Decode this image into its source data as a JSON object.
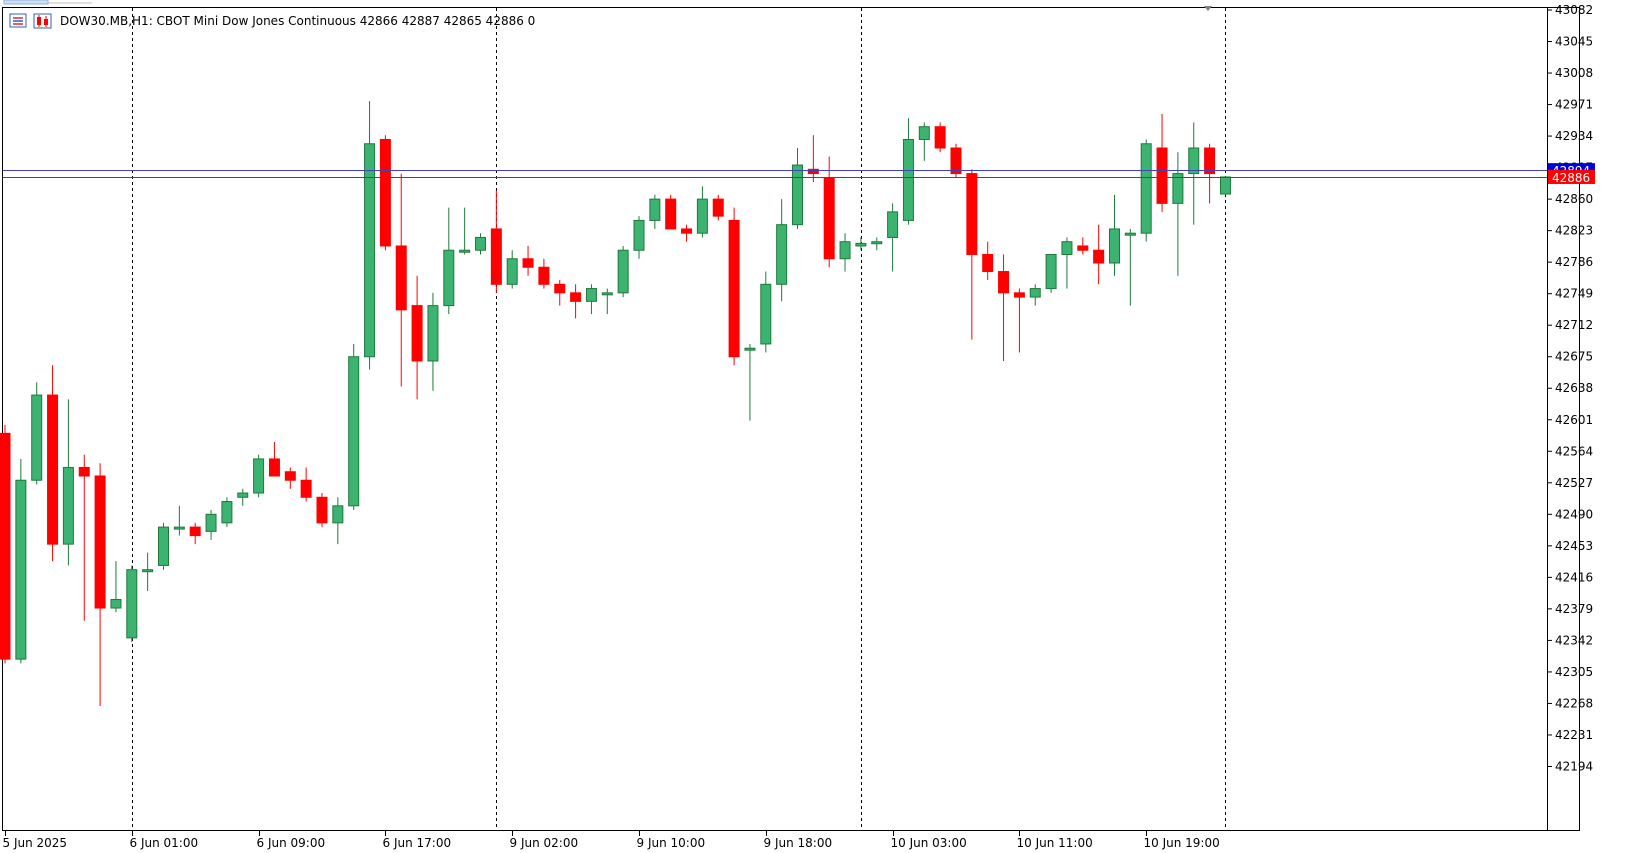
{
  "header": {
    "symbol_text": "DOW30.MB,H1:  CBOT Mini Dow Jones Continuous  42866 42887 42865 42886  0"
  },
  "colors": {
    "bull": "#3cb371",
    "bull_border": "#1e7a3c",
    "bear": "#ff0000",
    "bear_border": "#b00000",
    "bid_line": "#ff0000",
    "ask_line": "#4040c0",
    "grid": "#000000",
    "axis": "#000000"
  },
  "chart_data": {
    "type": "candlestick",
    "timeframe": "H1",
    "ylim": [
      42157,
      43082
    ],
    "yticks": [
      43082,
      43045,
      43008,
      42971,
      42934,
      42897,
      42860,
      42823,
      42786,
      42749,
      42712,
      42675,
      42638,
      42601,
      42564,
      42527,
      42490,
      42453,
      42416,
      42379,
      42342,
      42305,
      42268,
      42231,
      42194
    ],
    "xticks": [
      {
        "label": "5 Jun 2025",
        "bar": 0
      },
      {
        "label": "6 Jun 01:00",
        "bar": 8
      },
      {
        "label": "6 Jun 09:00",
        "bar": 16
      },
      {
        "label": "6 Jun 17:00",
        "bar": 24
      },
      {
        "label": "9 Jun 02:00",
        "bar": 32
      },
      {
        "label": "9 Jun 10:00",
        "bar": 40
      },
      {
        "label": "9 Jun 18:00",
        "bar": 48
      },
      {
        "label": "10 Jun 03:00",
        "bar": 56
      },
      {
        "label": "10 Jun 11:00",
        "bar": 64
      },
      {
        "label": "10 Jun 19:00",
        "bar": 72
      }
    ],
    "session_separators": [
      8,
      31,
      54,
      77
    ],
    "bid": 42886,
    "ask": 42894,
    "bid_label": "42886",
    "ask_label": "42894",
    "candles": [
      [
        42585,
        42595,
        42315,
        42320
      ],
      [
        42320,
        42555,
        42315,
        42530
      ],
      [
        42530,
        42645,
        42525,
        42630
      ],
      [
        42630,
        42665,
        42435,
        42455
      ],
      [
        42455,
        42625,
        42430,
        42545
      ],
      [
        42545,
        42560,
        42365,
        42535
      ],
      [
        42535,
        42550,
        42265,
        42380
      ],
      [
        42380,
        42435,
        42375,
        42390
      ],
      [
        42345,
        42430,
        42340,
        42425
      ],
      [
        42425,
        42445,
        42400,
        42425
      ],
      [
        42430,
        42480,
        42425,
        42475
      ],
      [
        42475,
        42500,
        42465,
        42475
      ],
      [
        42475,
        42480,
        42455,
        42465
      ],
      [
        42470,
        42495,
        42460,
        42490
      ],
      [
        42480,
        42510,
        42475,
        42505
      ],
      [
        42510,
        42520,
        42500,
        42515
      ],
      [
        42515,
        42560,
        42510,
        42555
      ],
      [
        42555,
        42575,
        42535,
        42535
      ],
      [
        42540,
        42545,
        42520,
        42530
      ],
      [
        42530,
        42545,
        42505,
        42510
      ],
      [
        42510,
        42515,
        42475,
        42480
      ],
      [
        42480,
        42510,
        42455,
        42500
      ],
      [
        42500,
        42690,
        42495,
        42675
      ],
      [
        42675,
        42975,
        42660,
        42925
      ],
      [
        42930,
        42935,
        42800,
        42805
      ],
      [
        42805,
        42890,
        42640,
        42730
      ],
      [
        42735,
        42770,
        42625,
        42670
      ],
      [
        42670,
        42750,
        42635,
        42735
      ],
      [
        42735,
        42850,
        42725,
        42800
      ],
      [
        42800,
        42850,
        42795,
        42800
      ],
      [
        42800,
        42820,
        42795,
        42815
      ],
      [
        42825,
        42870,
        42750,
        42760
      ],
      [
        42760,
        42800,
        42755,
        42790
      ],
      [
        42790,
        42805,
        42770,
        42780
      ],
      [
        42780,
        42790,
        42755,
        42760
      ],
      [
        42760,
        42765,
        42735,
        42750
      ],
      [
        42750,
        42760,
        42720,
        42740
      ],
      [
        42740,
        42760,
        42725,
        42755
      ],
      [
        42750,
        42755,
        42725,
        42750
      ],
      [
        42750,
        42805,
        42745,
        42800
      ],
      [
        42800,
        42840,
        42790,
        42835
      ],
      [
        42835,
        42865,
        42825,
        42860
      ],
      [
        42860,
        42865,
        42825,
        42825
      ],
      [
        42825,
        42830,
        42810,
        42820
      ],
      [
        42820,
        42875,
        42815,
        42860
      ],
      [
        42860,
        42865,
        42835,
        42840
      ],
      [
        42835,
        42850,
        42665,
        42675
      ],
      [
        42685,
        42690,
        42600,
        42685
      ],
      [
        42690,
        42775,
        42680,
        42760
      ],
      [
        42760,
        42860,
        42740,
        42830
      ],
      [
        42830,
        42920,
        42825,
        42900
      ],
      [
        42895,
        42935,
        42880,
        42890
      ],
      [
        42885,
        42910,
        42780,
        42790
      ],
      [
        42790,
        42820,
        42775,
        42810
      ],
      [
        42805,
        42815,
        42800,
        42808
      ],
      [
        42808,
        42815,
        42800,
        42810
      ],
      [
        42815,
        42855,
        42775,
        42845
      ],
      [
        42835,
        42955,
        42830,
        42930
      ],
      [
        42930,
        42950,
        42905,
        42945
      ],
      [
        42945,
        42950,
        42915,
        42920
      ],
      [
        42920,
        42925,
        42885,
        42890
      ],
      [
        42890,
        42895,
        42695,
        42795
      ],
      [
        42795,
        42810,
        42765,
        42775
      ],
      [
        42775,
        42795,
        42670,
        42750
      ],
      [
        42750,
        42755,
        42680,
        42745
      ],
      [
        42745,
        42760,
        42735,
        42755
      ],
      [
        42755,
        42795,
        42750,
        42795
      ],
      [
        42795,
        42815,
        42755,
        42810
      ],
      [
        42805,
        42815,
        42795,
        42800
      ],
      [
        42800,
        42830,
        42760,
        42785
      ],
      [
        42785,
        42865,
        42770,
        42825
      ],
      [
        42820,
        42825,
        42735,
        42820
      ],
      [
        42820,
        42930,
        42810,
        42925
      ],
      [
        42920,
        42960,
        42845,
        42855
      ],
      [
        42855,
        42915,
        42770,
        42890
      ],
      [
        42890,
        42950,
        42830,
        42920
      ],
      [
        42920,
        42925,
        42855,
        42890
      ],
      [
        42866,
        42887,
        42865,
        42886
      ]
    ]
  }
}
